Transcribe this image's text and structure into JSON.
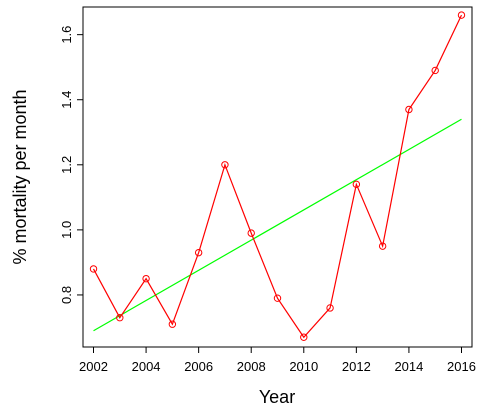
{
  "chart_data": {
    "type": "line",
    "title": "",
    "xlabel": "Year",
    "ylabel": "% mortality per month",
    "xlim": [
      2001.6,
      2016.4
    ],
    "ylim": [
      0.64,
      1.685
    ],
    "x_ticks": [
      2002,
      2004,
      2006,
      2008,
      2010,
      2012,
      2014,
      2016
    ],
    "x_tick_labels": [
      "2002",
      "2004",
      "2006",
      "2008",
      "2010",
      "2012",
      "2014",
      "2016"
    ],
    "y_ticks": [
      0.8,
      1.0,
      1.2,
      1.4,
      1.6
    ],
    "y_tick_labels": [
      "0.8",
      "1.0",
      "1.2",
      "1.4",
      "1.6"
    ],
    "grid": false,
    "legend": "none",
    "series": [
      {
        "x": [
          2002,
          2003,
          2004,
          2005,
          2006,
          2007,
          2008,
          2009,
          2010,
          2011,
          2012,
          2013,
          2014,
          2015,
          2016
        ],
        "values": [
          0.88,
          0.73,
          0.85,
          0.71,
          0.93,
          1.2,
          0.99,
          0.79,
          0.67,
          0.76,
          1.14,
          0.95,
          1.37,
          1.49,
          1.66
        ],
        "color": "#ff0000",
        "marker": "open-circle"
      }
    ],
    "trend_line": {
      "x": [
        2002,
        2016
      ],
      "values": [
        0.69,
        1.34
      ],
      "color": "#00ff00"
    }
  }
}
